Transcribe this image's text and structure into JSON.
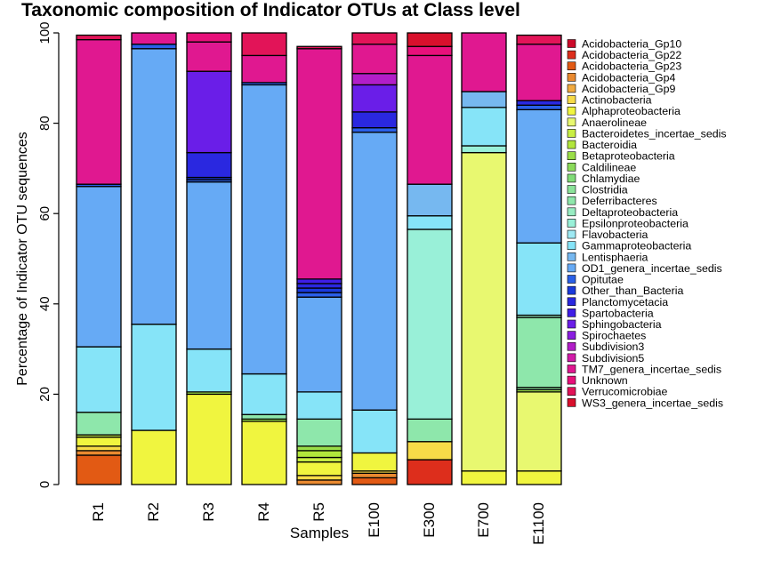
{
  "chart_data": {
    "type": "bar",
    "stacked": true,
    "title": "Taxonomic composition of Indicator OTUs at Class level",
    "xlabel": "Samples",
    "ylabel": "Percentage of Indicator OTU sequences",
    "ylim": [
      0,
      100
    ],
    "yticks": [
      0,
      20,
      40,
      60,
      80,
      100
    ],
    "legend_position": "right",
    "categories": [
      "R1",
      "R2",
      "R3",
      "R4",
      "R5",
      "E100",
      "E300",
      "E700",
      "E1100"
    ],
    "series": [
      {
        "name": "Acidobacteria_Gp10",
        "color": "#cc0a2a",
        "values": [
          0,
          0,
          0,
          0,
          0,
          0,
          0,
          0,
          0
        ]
      },
      {
        "name": "Acidobacteria_Gp22",
        "color": "#dd2e1c",
        "values": [
          0,
          0,
          0,
          0,
          0,
          0,
          5.5,
          0,
          0
        ]
      },
      {
        "name": "Acidobacteria_Gp23",
        "color": "#e25a14",
        "values": [
          6.5,
          0,
          0,
          0,
          0,
          1.5,
          0,
          0,
          0
        ]
      },
      {
        "name": "Acidobacteria_Gp4",
        "color": "#ea8a30",
        "values": [
          1.0,
          0,
          0,
          0,
          1.0,
          1.0,
          0,
          0,
          0
        ]
      },
      {
        "name": "Acidobacteria_Gp9",
        "color": "#f1aa40",
        "values": [
          0,
          0,
          0,
          0,
          0,
          0,
          0,
          0,
          0
        ]
      },
      {
        "name": "Actinobacteria",
        "color": "#f7db48",
        "values": [
          1.0,
          0,
          0,
          0,
          1.0,
          0.5,
          4.0,
          0,
          0
        ]
      },
      {
        "name": "Alphaproteobacteria",
        "color": "#f0f53f",
        "values": [
          2.0,
          12.0,
          20.0,
          14.0,
          3.0,
          4.0,
          0,
          3.0,
          3.0
        ]
      },
      {
        "name": "Anaerolineae",
        "color": "#e8f870",
        "values": [
          0,
          0,
          0,
          0,
          0,
          0,
          0,
          70.5,
          17.5
        ]
      },
      {
        "name": "Bacteroidetes_incertae_sedis",
        "color": "#c8ee44",
        "values": [
          0.5,
          0,
          0,
          0,
          1.0,
          0,
          0,
          0,
          0
        ]
      },
      {
        "name": "Bacteroidia",
        "color": "#b2e63c",
        "values": [
          0,
          0,
          0,
          0,
          1.5,
          0,
          0,
          0,
          0
        ]
      },
      {
        "name": "Betaproteobacteria",
        "color": "#9ade48",
        "values": [
          0,
          0,
          0.5,
          0.5,
          1.0,
          0,
          0,
          0,
          0.5
        ]
      },
      {
        "name": "Caldilineae",
        "color": "#8bdb5a",
        "values": [
          0,
          0,
          0,
          0,
          0,
          0,
          0,
          0,
          0
        ]
      },
      {
        "name": "Chlamydiae",
        "color": "#80dc78",
        "values": [
          0,
          0,
          0,
          0,
          0,
          0,
          0,
          0,
          0
        ]
      },
      {
        "name": "Clostridia",
        "color": "#8be39a",
        "values": [
          0,
          0,
          0,
          0,
          0,
          0,
          0,
          0,
          0.5
        ]
      },
      {
        "name": "Deferribacteres",
        "color": "#8ee7ab",
        "values": [
          5.0,
          0,
          0,
          1.0,
          6.0,
          0,
          5.0,
          0,
          15.5
        ]
      },
      {
        "name": "Deltaproteobacteria",
        "color": "#98ecc2",
        "values": [
          0,
          0,
          0,
          0,
          0,
          0,
          0,
          0,
          0.5
        ]
      },
      {
        "name": "Epsilonproteobacteria",
        "color": "#99f0d8",
        "values": [
          0,
          0,
          0,
          0,
          0,
          0,
          42.0,
          1.5,
          0
        ]
      },
      {
        "name": "Flavobacteria",
        "color": "#9ee9f3",
        "values": [
          0,
          0,
          0,
          0,
          0,
          0,
          0,
          0,
          0
        ]
      },
      {
        "name": "Gammaproteobacteria",
        "color": "#86e4f8",
        "values": [
          14.5,
          23.5,
          9.5,
          9.0,
          6.0,
          9.5,
          3.0,
          8.5,
          16.0
        ]
      },
      {
        "name": "Lentisphaeria",
        "color": "#76b8f0",
        "values": [
          0,
          0,
          0,
          0,
          0,
          0,
          7.0,
          3.5,
          0
        ]
      },
      {
        "name": "OD1_genera_incertae_sedis",
        "color": "#66aaf5",
        "values": [
          35.5,
          61.0,
          37.0,
          64.0,
          21.0,
          61.5,
          0,
          0,
          29.5
        ]
      },
      {
        "name": "Opitutae",
        "color": "#2a60e8",
        "values": [
          0.5,
          1.0,
          0.5,
          0.5,
          1.0,
          1.0,
          0,
          0,
          1.0
        ]
      },
      {
        "name": "Other_than_Bacteria",
        "color": "#1a3adc",
        "values": [
          0,
          0,
          0.5,
          0,
          1.0,
          0,
          0,
          0,
          0
        ]
      },
      {
        "name": "Planctomycetacia",
        "color": "#2a28e0",
        "values": [
          0,
          0,
          5.5,
          0,
          1.0,
          3.5,
          0,
          0,
          1.0
        ]
      },
      {
        "name": "Spartobacteria",
        "color": "#3f1ee6",
        "values": [
          0,
          0,
          0,
          0,
          1.0,
          0,
          0,
          0,
          0
        ]
      },
      {
        "name": "Sphingobacteria",
        "color": "#6a1ee8",
        "values": [
          0,
          0,
          18.0,
          0,
          0,
          6.0,
          0,
          0,
          0
        ]
      },
      {
        "name": "Spirochaetes",
        "color": "#8a1ee0",
        "values": [
          0,
          0,
          0,
          0,
          0,
          0,
          0,
          0,
          0
        ]
      },
      {
        "name": "Subdivision3",
        "color": "#b21ec8",
        "values": [
          0,
          0,
          0,
          0,
          0,
          2.5,
          0,
          0,
          0
        ]
      },
      {
        "name": "Subdivision5",
        "color": "#d11ca8",
        "values": [
          0,
          0,
          0,
          0,
          0,
          0,
          0,
          0,
          0
        ]
      },
      {
        "name": "TM7_genera_incertae_sedis",
        "color": "#e01890",
        "values": [
          32.0,
          2.5,
          6.5,
          6.0,
          51.0,
          6.5,
          28.5,
          13.0,
          12.5
        ]
      },
      {
        "name": "Unknown",
        "color": "#e8107a",
        "values": [
          0,
          0,
          2.0,
          0,
          0,
          0,
          2.0,
          0,
          0
        ]
      },
      {
        "name": "Verrucomicrobiae",
        "color": "#e21458",
        "values": [
          1.0,
          0,
          0,
          5.0,
          0.5,
          2.5,
          0,
          0,
          2.0
        ]
      },
      {
        "name": "WS3_genera_incertae_sedis",
        "color": "#d8102c",
        "values": [
          0,
          0,
          0,
          0,
          0,
          0,
          3.0,
          0,
          0
        ]
      }
    ]
  }
}
